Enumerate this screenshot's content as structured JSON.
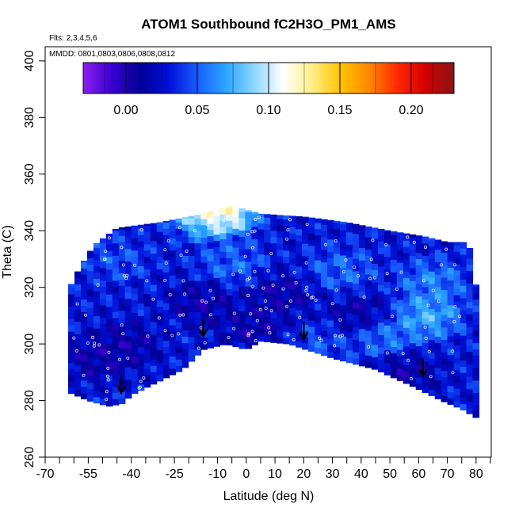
{
  "chart_data": {
    "type": "heatmap",
    "title": "ATOM1 Southbound fC2H3O_PM1_AMS",
    "subtitle_flights": "Flts: 2,3,4,5,6",
    "subtitle_dates": "MMDD: 0801,0803,0806,0808,0812",
    "xlabel": "Latitude (deg N)",
    "ylabel": "Theta (C)",
    "xlim": [
      -70,
      85
    ],
    "ylim": [
      260,
      405
    ],
    "x_ticks_labeled": [
      -70,
      -55,
      -40,
      -25,
      -10,
      0,
      10,
      20,
      30,
      40,
      50,
      60,
      70,
      80
    ],
    "x_ticks_minor": [
      -65,
      -60,
      -50,
      -45,
      -35,
      -30,
      -20,
      -15,
      -5,
      5,
      15,
      25,
      35,
      45,
      55,
      65,
      75,
      85
    ],
    "y_ticks": [
      260,
      280,
      300,
      320,
      340,
      360,
      380,
      400
    ],
    "colorbar": {
      "range": [
        -0.03,
        0.23
      ],
      "ticks": [
        0.0,
        0.05,
        0.1,
        0.15,
        0.2
      ],
      "tick_labels": [
        "0.00",
        "0.05",
        "0.10",
        "0.15",
        "0.20"
      ],
      "colors": [
        "#8a1ff0",
        "#3a00d0",
        "#000096",
        "#0010d8",
        "#1a5cff",
        "#2aa6ff",
        "#8fd6ff",
        "#ffffff",
        "#fff08a",
        "#ffc400",
        "#ff8a00",
        "#ff2a00",
        "#d40000",
        "#8a1414"
      ]
    },
    "domain_upper_boundary": [
      {
        "lat": -62,
        "theta": 319
      },
      {
        "lat": -58,
        "theta": 327
      },
      {
        "lat": -53,
        "theta": 335
      },
      {
        "lat": -45,
        "theta": 341
      },
      {
        "lat": -30,
        "theta": 343
      },
      {
        "lat": -15,
        "theta": 346
      },
      {
        "lat": -5,
        "theta": 349
      },
      {
        "lat": 5,
        "theta": 346
      },
      {
        "lat": 20,
        "theta": 345
      },
      {
        "lat": 35,
        "theta": 343
      },
      {
        "lat": 50,
        "theta": 340
      },
      {
        "lat": 62,
        "theta": 338
      },
      {
        "lat": 70,
        "theta": 336
      },
      {
        "lat": 77,
        "theta": 336
      },
      {
        "lat": 79,
        "theta": 330
      },
      {
        "lat": 80,
        "theta": 320
      },
      {
        "lat": 80,
        "theta": 301
      }
    ],
    "domain_lower_boundary": [
      {
        "lat": -62,
        "theta": 283
      },
      {
        "lat": -55,
        "theta": 280
      },
      {
        "lat": -48,
        "theta": 278
      },
      {
        "lat": -43,
        "theta": 279
      },
      {
        "lat": -40,
        "theta": 282
      },
      {
        "lat": -22,
        "theta": 291
      },
      {
        "lat": -15,
        "theta": 298
      },
      {
        "lat": -7,
        "theta": 300
      },
      {
        "lat": 0,
        "theta": 298
      },
      {
        "lat": 5,
        "theta": 301
      },
      {
        "lat": 15,
        "theta": 300
      },
      {
        "lat": 30,
        "theta": 295
      },
      {
        "lat": 45,
        "theta": 291
      },
      {
        "lat": 58,
        "theta": 285
      },
      {
        "lat": 68,
        "theta": 280
      },
      {
        "lat": 75,
        "theta": 277
      },
      {
        "lat": 80,
        "theta": 274
      }
    ],
    "field_features": [
      {
        "lat": -9,
        "theta": 347,
        "value": 0.16
      },
      {
        "lat": -14,
        "theta": 346,
        "value": 0.1
      },
      {
        "lat": 63,
        "theta": 310,
        "value": 0.09
      },
      {
        "lat": 65,
        "theta": 322,
        "value": 0.07
      },
      {
        "lat": 48,
        "theta": 303,
        "value": 0.07
      },
      {
        "lat": -5,
        "theta": 328,
        "value": 0.06
      },
      {
        "lat": 33,
        "theta": 326,
        "value": 0.06
      },
      {
        "lat": 25,
        "theta": 300,
        "value": 0.05
      },
      {
        "lat": -45,
        "theta": 330,
        "value": 0.05
      },
      {
        "lat": -15,
        "theta": 315,
        "value": 0.0
      },
      {
        "lat": 12,
        "theta": 318,
        "value": 0.0
      },
      {
        "lat": 3,
        "theta": 305,
        "value": 0.0
      },
      {
        "lat": -52,
        "theta": 295,
        "value": 0.0
      },
      {
        "lat": -42,
        "theta": 300,
        "value": 0.0
      },
      {
        "lat": 40,
        "theta": 310,
        "value": 0.0
      },
      {
        "lat": 55,
        "theta": 290,
        "value": 0.0
      }
    ],
    "background_value": 0.03,
    "arrows": [
      {
        "lat": -43.5,
        "theta": 283
      },
      {
        "lat": -15,
        "theta": 303
      },
      {
        "lat": 20,
        "theta": 302
      },
      {
        "lat": 61.5,
        "theta": 289
      }
    ]
  }
}
